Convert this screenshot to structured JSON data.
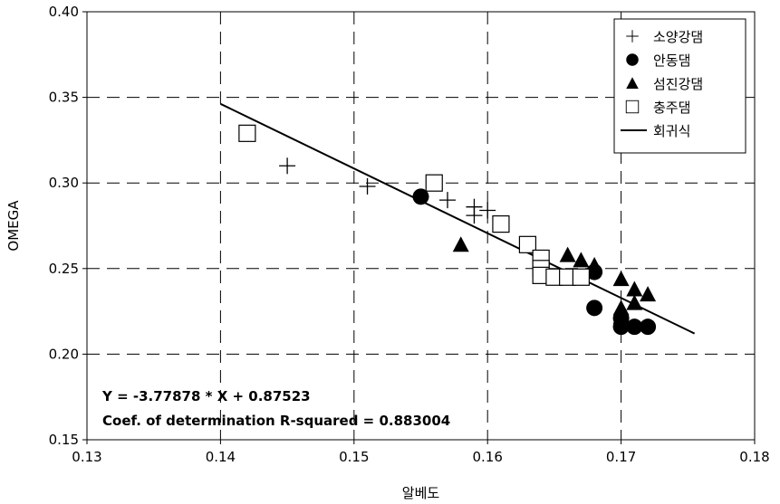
{
  "chart_data": {
    "type": "scatter",
    "title": "",
    "xlabel": "알베도",
    "ylabel": "OMEGA",
    "xlim": [
      0.13,
      0.18
    ],
    "ylim": [
      0.15,
      0.4
    ],
    "x_ticks": [
      "0.13",
      "0.14",
      "0.15",
      "0.16",
      "0.17",
      "0.18"
    ],
    "y_ticks": [
      "0.15",
      "0.20",
      "0.25",
      "0.30",
      "0.35",
      "0.40"
    ],
    "grid": "dashed",
    "legend_position": "top-right",
    "series": [
      {
        "name": "소양강댐",
        "marker": "plus",
        "points": [
          [
            0.145,
            0.31
          ],
          [
            0.151,
            0.298
          ],
          [
            0.157,
            0.29
          ],
          [
            0.159,
            0.286
          ],
          [
            0.159,
            0.281
          ],
          [
            0.16,
            0.284
          ]
        ]
      },
      {
        "name": "안동댐",
        "marker": "circle",
        "points": [
          [
            0.155,
            0.292
          ],
          [
            0.168,
            0.248
          ],
          [
            0.168,
            0.227
          ],
          [
            0.17,
            0.221
          ],
          [
            0.17,
            0.216
          ],
          [
            0.171,
            0.216
          ],
          [
            0.172,
            0.216
          ]
        ]
      },
      {
        "name": "섬진강댐",
        "marker": "triangle",
        "points": [
          [
            0.158,
            0.264
          ],
          [
            0.166,
            0.258
          ],
          [
            0.167,
            0.255
          ],
          [
            0.168,
            0.252
          ],
          [
            0.17,
            0.244
          ],
          [
            0.171,
            0.238
          ],
          [
            0.172,
            0.235
          ],
          [
            0.171,
            0.23
          ],
          [
            0.17,
            0.227
          ],
          [
            0.17,
            0.222
          ]
        ]
      },
      {
        "name": "충주댐",
        "marker": "square",
        "points": [
          [
            0.142,
            0.329
          ],
          [
            0.156,
            0.3
          ],
          [
            0.161,
            0.276
          ],
          [
            0.163,
            0.264
          ],
          [
            0.164,
            0.256
          ],
          [
            0.164,
            0.25
          ],
          [
            0.164,
            0.246
          ],
          [
            0.165,
            0.245
          ],
          [
            0.166,
            0.245
          ],
          [
            0.167,
            0.245
          ]
        ]
      }
    ],
    "regression": {
      "name": "회귀식",
      "slope": -3.77878,
      "intercept": 0.87523,
      "x_range": [
        0.14,
        0.1755
      ]
    },
    "annotations": [
      "Y = -3.77878 * X + 0.87523",
      "Coef. of determination R-squared = 0.883004"
    ]
  }
}
